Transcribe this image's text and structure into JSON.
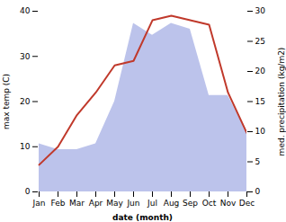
{
  "chart_data": {
    "type": "line",
    "xlabel": "date (month)",
    "ylabel": "max temp (C)",
    "y2label": "med. precipitation (kg/m2)",
    "categories": [
      "Jan",
      "Feb",
      "Mar",
      "Apr",
      "May",
      "Jun",
      "Jul",
      "Aug",
      "Sep",
      "Oct",
      "Nov",
      "Dec"
    ],
    "series": [
      {
        "type": "area",
        "color": "#b0b8e8",
        "axis": "y2",
        "values": [
          8,
          7,
          7,
          8,
          15,
          28,
          26,
          28,
          27,
          16,
          16,
          10
        ]
      },
      {
        "type": "line",
        "color": "#c0392b",
        "values": [
          6,
          10,
          17,
          22,
          28,
          29,
          38,
          39,
          38,
          37,
          22,
          13
        ]
      }
    ],
    "ylim": [
      0,
      40
    ],
    "yticks": [
      0,
      10,
      20,
      30,
      40
    ],
    "y2lim": [
      0,
      30
    ],
    "y2ticks": [
      0,
      5,
      10,
      15,
      20,
      25,
      30
    ],
    "grid": false
  }
}
